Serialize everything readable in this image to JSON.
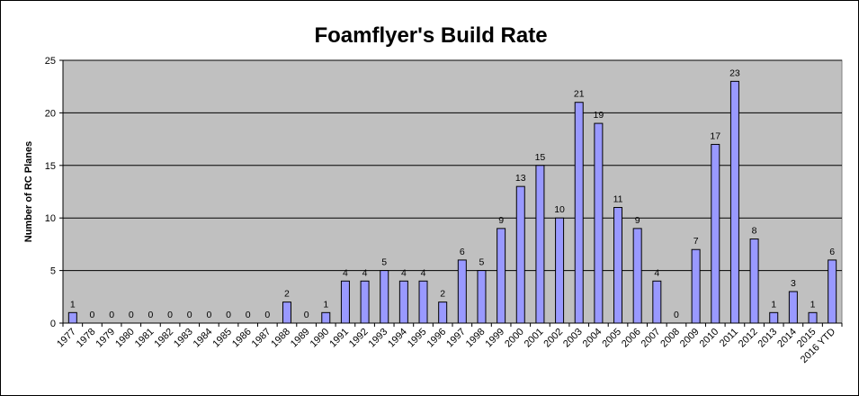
{
  "chart_data": {
    "type": "bar",
    "title": "Foamflyer's Build Rate",
    "ylabel": "Number of RC Planes",
    "xlabel": "",
    "ylim": [
      0,
      25
    ],
    "yticks": [
      0,
      5,
      10,
      15,
      20,
      25
    ],
    "grid": true,
    "legend": "none",
    "colors": {
      "bar": "#9999ff",
      "plot_bg": "#c0c0c0",
      "grid": "#000000"
    },
    "categories": [
      "1977",
      "1978",
      "1979",
      "1980",
      "1981",
      "1982",
      "1983",
      "1984",
      "1985",
      "1986",
      "1987",
      "1988",
      "1989",
      "1990",
      "1991",
      "1992",
      "1993",
      "1994",
      "1995",
      "1996",
      "1997",
      "1998",
      "1999",
      "2000",
      "2001",
      "2002",
      "2003",
      "2004",
      "2005",
      "2006",
      "2007",
      "2008",
      "2009",
      "2010",
      "2011",
      "2012",
      "2013",
      "2014",
      "2015",
      "2016 YTD"
    ],
    "values": [
      1,
      0,
      0,
      0,
      0,
      0,
      0,
      0,
      0,
      0,
      0,
      2,
      0,
      1,
      4,
      4,
      5,
      4,
      4,
      2,
      6,
      5,
      9,
      13,
      15,
      10,
      21,
      19,
      11,
      9,
      4,
      0,
      7,
      17,
      23,
      8,
      1,
      3,
      1,
      6
    ]
  }
}
